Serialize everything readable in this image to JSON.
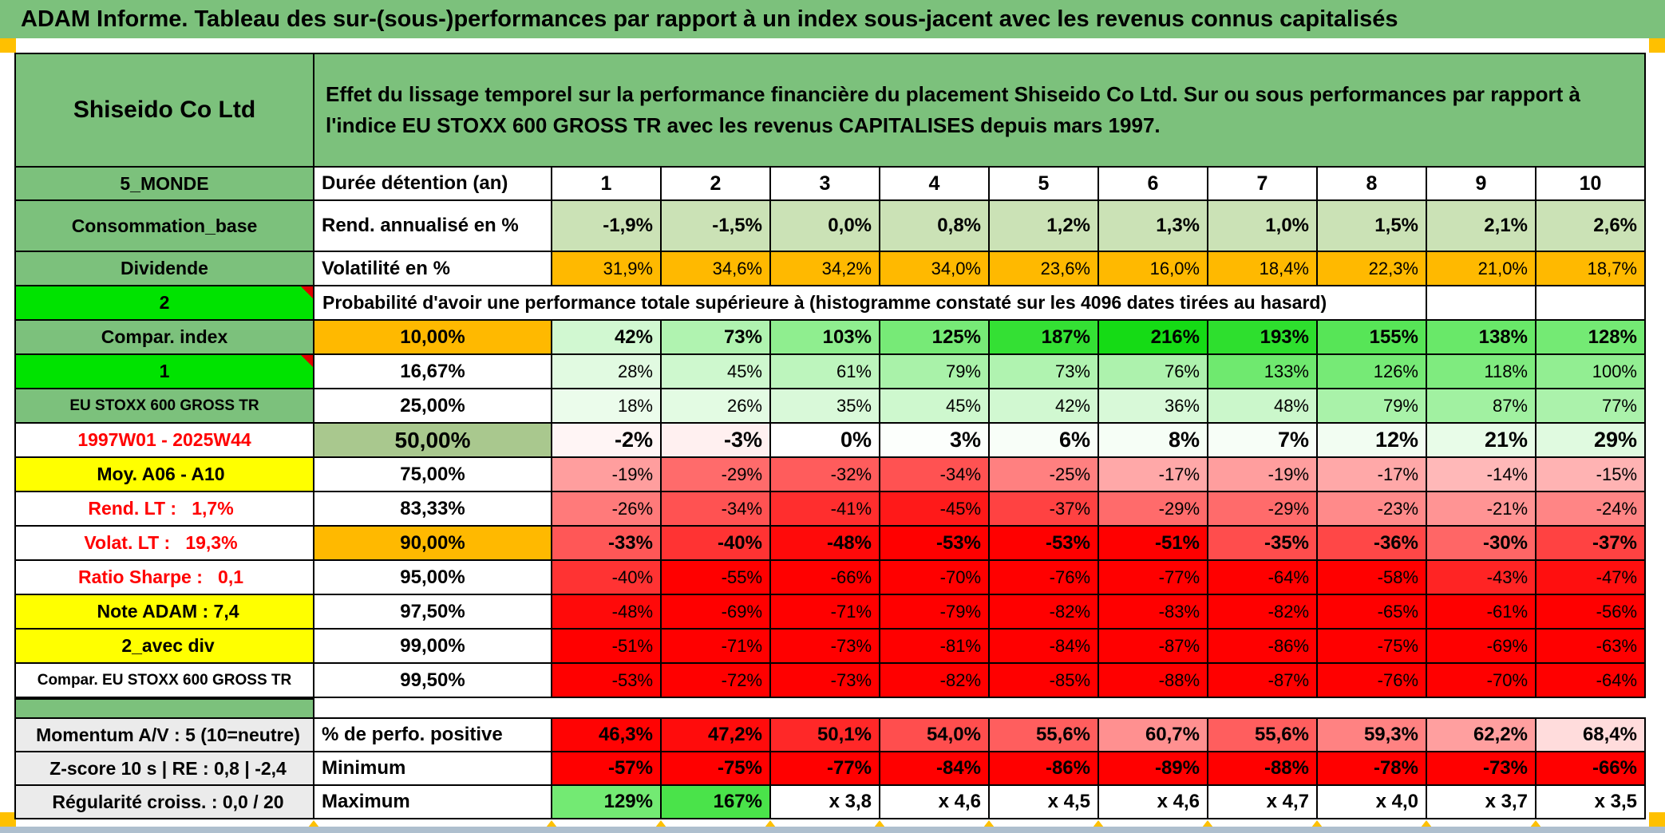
{
  "title": "ADAM Informe. Tableau des sur-(sous-)performances par rapport à un index sous-jacent avec les revenus connus capitalisés",
  "header": {
    "security_name": "Shiseido Co Ltd",
    "description": "Effet du lissage temporel sur la performance financière du placement Shiseido Co Ltd. Sur ou sous performances par rapport à l'indice EU STOXX 600 GROSS TR avec les revenus CAPITALISES depuis mars 1997."
  },
  "columns": [
    "1",
    "2",
    "3",
    "4",
    "5",
    "6",
    "7",
    "8",
    "9",
    "10"
  ],
  "grid": {
    "rows": [
      {
        "type": "duration",
        "left": "5_MONDE",
        "leftStyle": "green",
        "label": "Durée détention (an)",
        "cells": [
          "1",
          "2",
          "3",
          "4",
          "5",
          "6",
          "7",
          "8",
          "9",
          "10"
        ]
      },
      {
        "type": "rend",
        "left": "Consommation_base",
        "leftStyle": "green",
        "label": "Rend. annualisé en %",
        "cells": [
          "-1,9%",
          "-1,5%",
          "0,0%",
          "0,8%",
          "1,2%",
          "1,3%",
          "1,0%",
          "1,5%",
          "2,1%",
          "2,6%"
        ]
      },
      {
        "type": "vol",
        "left": "Dividende",
        "leftStyle": "green",
        "label": "Volatilité en %",
        "cells": [
          "31,9%",
          "34,6%",
          "34,2%",
          "34,0%",
          "23,6%",
          "16,0%",
          "18,4%",
          "22,3%",
          "21,0%",
          "18,7%"
        ]
      },
      {
        "type": "prob",
        "left": "2",
        "leftStyle": "bright",
        "marker": true,
        "label": "Probabilité d'avoir une performance totale supérieure à (histogramme constaté sur les 4096 dates tirées au hasard)"
      },
      {
        "type": "pct",
        "left": "Compar. index",
        "leftStyle": "green",
        "pct": "10,00%",
        "pctStyle": "orange",
        "bold": true,
        "cells": [
          "42%",
          "73%",
          "103%",
          "125%",
          "187%",
          "216%",
          "193%",
          "155%",
          "138%",
          "128%"
        ]
      },
      {
        "type": "pct",
        "left": "1",
        "leftStyle": "bright",
        "marker": true,
        "pct": "16,67%",
        "cells": [
          "28%",
          "45%",
          "61%",
          "79%",
          "73%",
          "76%",
          "133%",
          "126%",
          "118%",
          "100%"
        ]
      },
      {
        "type": "pct",
        "left": "EU STOXX 600 GROSS TR",
        "leftStyle": "green-small",
        "pct": "25,00%",
        "cells": [
          "18%",
          "26%",
          "35%",
          "45%",
          "42%",
          "36%",
          "48%",
          "79%",
          "87%",
          "77%"
        ]
      },
      {
        "type": "pct",
        "left": "1997W01 - 2025W44",
        "leftStyle": "red",
        "pct": "50,00%",
        "pctStyle": "sage",
        "bold": true,
        "big": true,
        "cells": [
          "-2%",
          "-3%",
          "0%",
          "3%",
          "6%",
          "8%",
          "7%",
          "12%",
          "21%",
          "29%"
        ]
      },
      {
        "type": "pct",
        "left": "Moy. A06 - A10",
        "leftStyle": "yellow-right",
        "pct": "75,00%",
        "cells": [
          "-19%",
          "-29%",
          "-32%",
          "-34%",
          "-25%",
          "-17%",
          "-19%",
          "-17%",
          "-14%",
          "-15%"
        ]
      },
      {
        "type": "pct",
        "left": "Rend. LT :   1,7%",
        "leftStyle": "red-right",
        "pct": "83,33%",
        "cells": [
          "-26%",
          "-34%",
          "-41%",
          "-45%",
          "-37%",
          "-29%",
          "-29%",
          "-23%",
          "-21%",
          "-24%"
        ]
      },
      {
        "type": "pct",
        "left": "Volat. LT :   19,3%",
        "leftStyle": "red-right",
        "pct": "90,00%",
        "pctStyle": "orange",
        "bold": true,
        "cells": [
          "-33%",
          "-40%",
          "-48%",
          "-53%",
          "-53%",
          "-51%",
          "-35%",
          "-36%",
          "-30%",
          "-37%"
        ]
      },
      {
        "type": "pct",
        "left": "Ratio Sharpe :   0,1",
        "leftStyle": "red-right",
        "pct": "95,00%",
        "cells": [
          "-40%",
          "-55%",
          "-66%",
          "-70%",
          "-76%",
          "-77%",
          "-64%",
          "-58%",
          "-43%",
          "-47%"
        ]
      },
      {
        "type": "pct",
        "left": "Note ADAM : 7,4",
        "leftStyle": "yellow-left",
        "pct": "97,50%",
        "cells": [
          "-48%",
          "-69%",
          "-71%",
          "-79%",
          "-82%",
          "-83%",
          "-82%",
          "-65%",
          "-61%",
          "-56%"
        ]
      },
      {
        "type": "pct",
        "left": "2_avec div",
        "leftStyle": "yellow-left",
        "pct": "99,00%",
        "cells": [
          "-51%",
          "-71%",
          "-73%",
          "-81%",
          "-84%",
          "-87%",
          "-86%",
          "-75%",
          "-69%",
          "-63%"
        ]
      },
      {
        "type": "pct",
        "left": "Compar. EU STOXX 600 GROSS TR",
        "leftStyle": "small",
        "pct": "99,50%",
        "cells": [
          "-53%",
          "-72%",
          "-73%",
          "-82%",
          "-85%",
          "-88%",
          "-87%",
          "-76%",
          "-70%",
          "-64%"
        ]
      }
    ]
  },
  "footer": {
    "rows": [
      {
        "type": "perfo",
        "left": "Momentum A/V : 5 (10=neutre)",
        "label": "% de perfo. positive",
        "cells": [
          "46,3%",
          "47,2%",
          "50,1%",
          "54,0%",
          "55,6%",
          "60,7%",
          "55,6%",
          "59,3%",
          "62,2%",
          "68,4%"
        ]
      },
      {
        "type": "min",
        "left": "Z-score 10 s | RE : 0,8 | -2,4",
        "label": "Minimum",
        "cells": [
          "-57%",
          "-75%",
          "-77%",
          "-84%",
          "-86%",
          "-89%",
          "-88%",
          "-78%",
          "-73%",
          "-66%"
        ]
      },
      {
        "type": "max",
        "left": "Régularité croiss. : 0,0 / 20",
        "label": "Maximum",
        "cells": [
          "129%",
          "167%",
          "x 3,8",
          "x 4,6",
          "x 4,5",
          "x 4,6",
          "x 4,7",
          "x 4,0",
          "x 3,7",
          "x 3,5"
        ]
      }
    ]
  },
  "colors": {
    "title_green": "#7CC17C",
    "label_green": "#7CC17C",
    "bright_green": "#00E300",
    "orange": "#FFB900",
    "sage": "#A9C88E",
    "light_green_row": "#CBE2B6",
    "yellow": "#FFFF00",
    "gray_label": "#EBEBEB",
    "red_text": "#FF0000",
    "pure_red": "#FF0000",
    "comment_marker_red": "#E00000",
    "page_break_orange": "#FFC000",
    "window_edge_blue": "#AEBFCE"
  }
}
